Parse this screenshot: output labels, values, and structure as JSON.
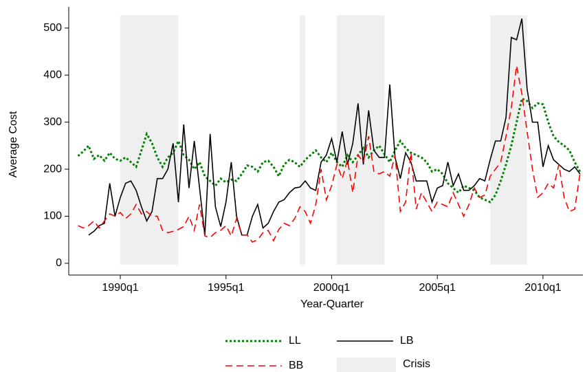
{
  "chart_data": {
    "type": "line",
    "x_label": "Year-Quarter",
    "y_label": "Average Cost",
    "x": [
      1988,
      1988.25,
      1988.5,
      1988.75,
      1989,
      1989.25,
      1989.5,
      1989.75,
      1990,
      1990.25,
      1990.5,
      1990.75,
      1991,
      1991.25,
      1991.5,
      1991.75,
      1992,
      1992.25,
      1992.5,
      1992.75,
      1993,
      1993.25,
      1993.5,
      1993.75,
      1994,
      1994.25,
      1994.5,
      1994.75,
      1995,
      1995.25,
      1995.5,
      1995.75,
      1996,
      1996.25,
      1996.5,
      1996.75,
      1997,
      1997.25,
      1997.5,
      1997.75,
      1998,
      1998.25,
      1998.5,
      1998.75,
      1999,
      1999.25,
      1999.5,
      1999.75,
      2000,
      2000.25,
      2000.5,
      2000.75,
      2001,
      2001.25,
      2001.5,
      2001.75,
      2002,
      2002.25,
      2002.5,
      2002.75,
      2003,
      2003.25,
      2003.5,
      2003.75,
      2004,
      2004.25,
      2004.5,
      2004.75,
      2005,
      2005.25,
      2005.5,
      2005.75,
      2006,
      2006.25,
      2006.5,
      2006.75,
      2007,
      2007.25,
      2007.5,
      2007.75,
      2008,
      2008.25,
      2008.5,
      2008.75,
      2009,
      2009.25,
      2009.5,
      2009.75,
      2010,
      2010.25,
      2010.5,
      2010.75,
      2011,
      2011.25,
      2011.5,
      2011.75
    ],
    "series": [
      {
        "name": "LL",
        "color": "#008000",
        "line_style": "dotted",
        "values": [
          228,
          238,
          250,
          222,
          230,
          218,
          235,
          222,
          218,
          225,
          215,
          205,
          240,
          275,
          255,
          225,
          205,
          225,
          235,
          260,
          230,
          220,
          200,
          215,
          185,
          175,
          165,
          180,
          172,
          178,
          175,
          190,
          208,
          205,
          195,
          215,
          218,
          205,
          185,
          210,
          220,
          215,
          205,
          220,
          230,
          240,
          225,
          215,
          235,
          215,
          205,
          230,
          215,
          230,
          245,
          225,
          240,
          250,
          232,
          215,
          240,
          260,
          245,
          235,
          230,
          225,
          215,
          195,
          200,
          190,
          170,
          160,
          150,
          165,
          160,
          155,
          140,
          135,
          130,
          145,
          175,
          210,
          250,
          300,
          350,
          345,
          330,
          340,
          338,
          300,
          270,
          258,
          250,
          240,
          215,
          195
        ]
      },
      {
        "name": "LB",
        "color": "#000000",
        "line_style": "solid",
        "values": [
          null,
          null,
          60,
          68,
          80,
          85,
          170,
          100,
          140,
          170,
          175,
          155,
          120,
          90,
          110,
          180,
          180,
          200,
          255,
          130,
          295,
          160,
          260,
          160,
          60,
          275,
          120,
          78,
          130,
          215,
          100,
          60,
          60,
          100,
          125,
          75,
          85,
          110,
          130,
          135,
          150,
          160,
          162,
          175,
          160,
          155,
          215,
          230,
          265,
          215,
          280,
          210,
          255,
          340,
          210,
          325,
          240,
          225,
          225,
          380,
          225,
          180,
          235,
          215,
          175,
          175,
          175,
          130,
          160,
          165,
          215,
          165,
          190,
          155,
          155,
          165,
          180,
          175,
          220,
          260,
          260,
          310,
          480,
          475,
          520,
          370,
          300,
          300,
          205,
          250,
          220,
          210,
          200,
          195,
          205,
          190
        ]
      },
      {
        "name": "BB",
        "color": "#ff0000",
        "line_style": "dashed",
        "values": [
          80,
          75,
          80,
          90,
          75,
          90,
          105,
          100,
          108,
          95,
          105,
          125,
          105,
          110,
          100,
          100,
          70,
          65,
          68,
          72,
          78,
          100,
          70,
          125,
          58,
          55,
          65,
          70,
          80,
          58,
          95,
          60,
          60,
          45,
          50,
          65,
          70,
          48,
          72,
          85,
          80,
          95,
          120,
          110,
          85,
          125,
          200,
          135,
          165,
          210,
          180,
          220,
          150,
          230,
          215,
          270,
          195,
          190,
          195,
          185,
          230,
          110,
          130,
          235,
          115,
          150,
          130,
          110,
          130,
          125,
          120,
          150,
          125,
          100,
          125,
          160,
          140,
          145,
          185,
          200,
          215,
          270,
          330,
          420,
          360,
          280,
          200,
          140,
          150,
          170,
          160,
          210,
          140,
          110,
          115,
          190
        ]
      }
    ],
    "shaded_regions": {
      "name": "Crisis",
      "color": "#efefef",
      "ranges": [
        [
          1990,
          1992.75
        ],
        [
          1998.5,
          1998.75
        ],
        [
          2000.25,
          2002.5
        ],
        [
          2007.5,
          2009.25
        ]
      ]
    },
    "xlim": [
      1987.56,
      2011.89
    ],
    "ylim": [
      -25,
      545
    ],
    "xticks": [
      {
        "value": 1990,
        "label": "1990q1"
      },
      {
        "value": 1995,
        "label": "1995q1"
      },
      {
        "value": 2000,
        "label": "2000q1"
      },
      {
        "value": 2005,
        "label": "2005q1"
      },
      {
        "value": 2010,
        "label": "2010q1"
      }
    ],
    "yticks": [
      0,
      100,
      200,
      300,
      400,
      500
    ]
  }
}
